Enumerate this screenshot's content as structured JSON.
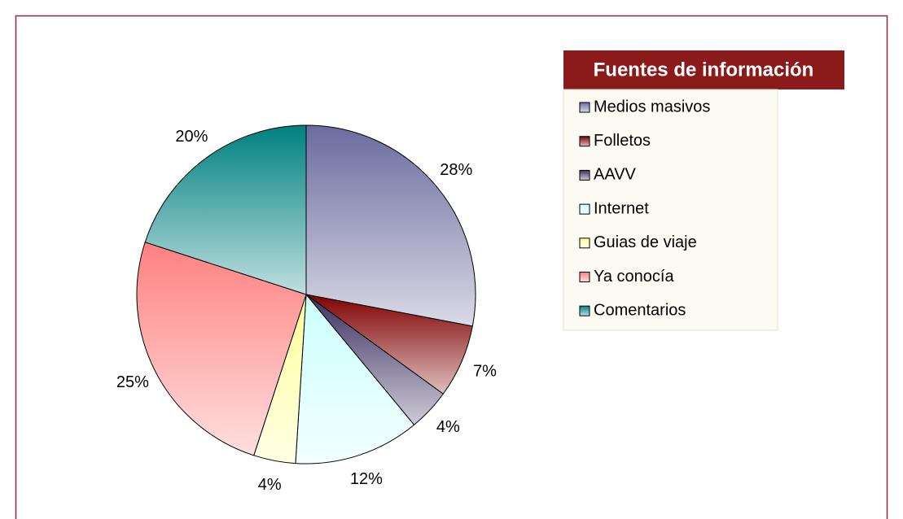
{
  "chart_data": {
    "type": "pie",
    "title": "Fuentes de información",
    "categories": [
      "Medios masivos",
      "Folletos",
      "AAVV",
      "Internet",
      "Guias de viaje",
      "Ya conocía",
      "Comentarios"
    ],
    "values": [
      28,
      7,
      4,
      12,
      4,
      25,
      20
    ],
    "value_labels": [
      "28%",
      "7%",
      "4%",
      "12%",
      "4%",
      "25%",
      "20%"
    ],
    "colors": [
      "#6b6b9f",
      "#800000",
      "#3a3060",
      "#ccffff",
      "#ffff99",
      "#ff8080",
      "#008080"
    ],
    "legend": "top-right"
  }
}
